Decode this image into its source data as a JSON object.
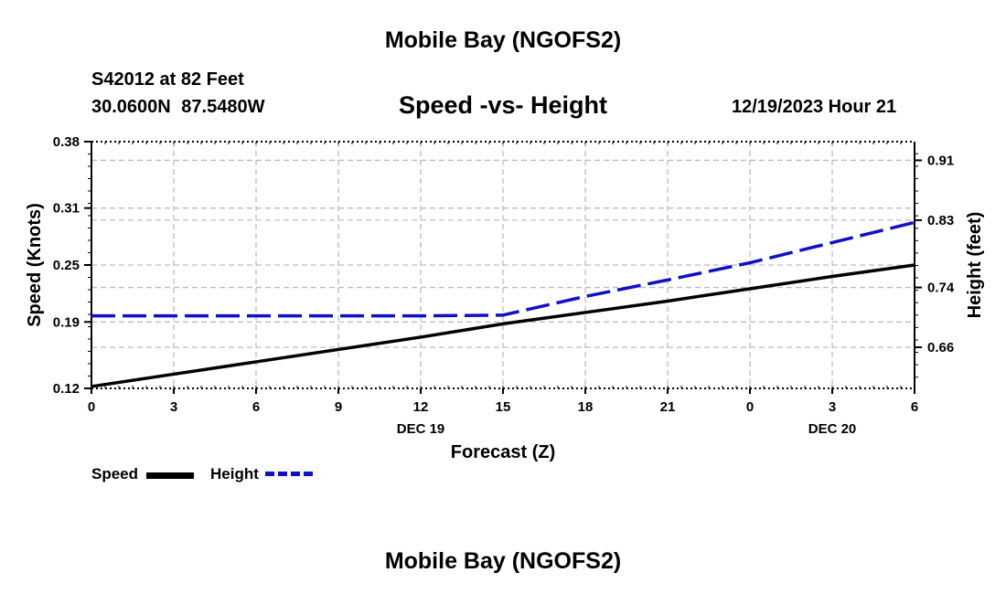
{
  "header": {
    "title": "Mobile Bay (NGOFS2)",
    "station": "S42012 at 82 Feet",
    "coords": "30.0600N  87.5480W",
    "chart_title": "Speed -vs- Height",
    "datetime": "12/19/2023 Hour 21"
  },
  "footer": {
    "title": "Mobile Bay (NGOFS2)"
  },
  "legend": {
    "speed_label": "Speed",
    "height_label": "Height"
  },
  "colors": {
    "speed": "#000000",
    "height": "#1010c8",
    "grid": "#bdbdbd"
  },
  "chart_data": {
    "type": "line",
    "title": "Speed -vs- Height",
    "xlabel": "Forecast (Z)",
    "ylabel": "Speed (Knots)",
    "y2label": "Height (feet)",
    "x": [
      0,
      3,
      6,
      9,
      12,
      15,
      18,
      21,
      24,
      27,
      30
    ],
    "x_tick_labels": [
      "0",
      "3",
      "6",
      "9",
      "12",
      "15",
      "18",
      "21",
      "0",
      "3",
      "6"
    ],
    "date_labels": [
      {
        "x": 12,
        "label": "DEC 19"
      },
      {
        "x": 27,
        "label": "DEC 20"
      }
    ],
    "xlim": [
      0,
      30
    ],
    "ylim": [
      0.12,
      0.38
    ],
    "y_ticks": [
      "0.12",
      "0.19",
      "0.25",
      "0.31",
      "0.38"
    ],
    "y2lim": [
      0.605,
      0.935
    ],
    "y2_ticks": [
      "0.66",
      "0.74",
      "0.83",
      "0.91"
    ],
    "grid": true,
    "series": [
      {
        "name": "Speed",
        "axis": "left",
        "style": "solid",
        "values": [
          0.122,
          0.135,
          0.148,
          0.161,
          0.174,
          0.188,
          0.2,
          0.212,
          0.225,
          0.238,
          0.25
        ]
      },
      {
        "name": "Height",
        "axis": "right",
        "style": "dashed",
        "values": [
          0.702,
          0.702,
          0.702,
          0.702,
          0.702,
          0.703,
          0.728,
          0.75,
          0.773,
          0.8,
          0.827
        ]
      }
    ]
  }
}
